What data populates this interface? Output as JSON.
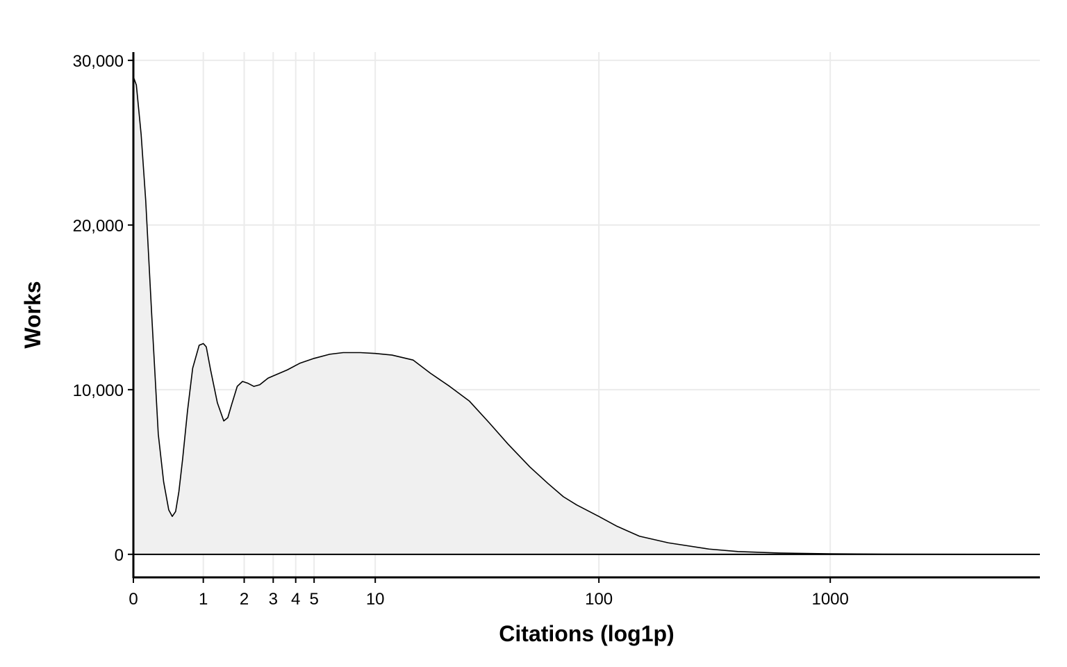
{
  "chart_data": {
    "type": "area",
    "xlabel": "Citations (log1p)",
    "ylabel": "Works",
    "x_scale": "log1p",
    "xlim": [
      0,
      8000
    ],
    "ylim": [
      -1400,
      30500
    ],
    "x_ticks": [
      {
        "value": 0,
        "label": "0"
      },
      {
        "value": 1,
        "label": "1"
      },
      {
        "value": 2,
        "label": "2"
      },
      {
        "value": 3,
        "label": "3"
      },
      {
        "value": 4,
        "label": "4"
      },
      {
        "value": 5,
        "label": "5"
      },
      {
        "value": 10,
        "label": "10"
      },
      {
        "value": 100,
        "label": "100"
      },
      {
        "value": 1000,
        "label": "1000"
      }
    ],
    "y_ticks": [
      {
        "value": 0,
        "label": "0"
      },
      {
        "value": 10000,
        "label": "10,000"
      },
      {
        "value": 20000,
        "label": "20,000"
      },
      {
        "value": 30000,
        "label": "30,000"
      }
    ],
    "grid": true,
    "fill_color": "#f0f0f0",
    "line_color": "#000000",
    "grid_color": "#ebebeb",
    "series": [
      {
        "x": [
          0,
          0.03,
          0.08,
          0.13,
          0.2,
          0.28,
          0.35,
          0.42,
          0.47,
          0.52,
          0.57,
          0.63,
          0.71,
          0.8,
          0.92,
          1.0,
          1.06,
          1.15,
          1.3,
          1.45,
          1.55,
          1.65,
          1.8,
          1.95,
          2.1,
          2.3,
          2.5,
          2.8,
          3.1,
          3.6,
          4.2,
          5,
          6,
          7,
          8.5,
          10,
          12,
          15,
          18,
          22,
          27,
          33,
          40,
          50,
          60,
          70,
          80,
          100,
          120,
          150,
          200,
          300,
          400,
          600,
          1000,
          1500,
          2500,
          5000,
          8000
        ],
        "y": [
          29000,
          28500,
          25500,
          21500,
          14500,
          7300,
          4400,
          2700,
          2300,
          2600,
          3800,
          5800,
          8700,
          11300,
          12700,
          12800,
          12600,
          11200,
          9200,
          8100,
          8300,
          9100,
          10200,
          10500,
          10400,
          10200,
          10300,
          10700,
          10900,
          11200,
          11600,
          11900,
          12150,
          12250,
          12250,
          12200,
          12100,
          11800,
          11000,
          10200,
          9300,
          8000,
          6700,
          5300,
          4300,
          3500,
          3000,
          2300,
          1700,
          1100,
          700,
          320,
          170,
          80,
          35,
          15,
          5,
          1,
          0
        ]
      }
    ]
  }
}
